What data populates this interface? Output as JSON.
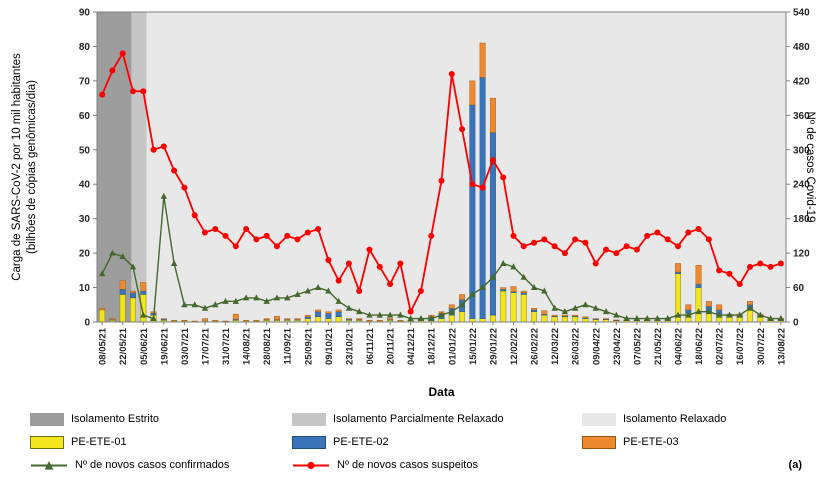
{
  "figure_label": "(a)",
  "chart_data": {
    "type": "combo",
    "xlabel": "Data",
    "ylabel_left_lines": [
      "Carga de SARS-CoV-2 por 10 mil habitantes",
      "(bilhões de cópias genômicas/dia)"
    ],
    "ylabel_right": "Nº de casos Covid-19",
    "ylim_left": [
      0,
      90
    ],
    "ylim_right": [
      0,
      540
    ],
    "yticks_left": [
      0,
      10,
      20,
      30,
      40,
      50,
      60,
      70,
      80,
      90
    ],
    "yticks_right": [
      0,
      60,
      120,
      180,
      240,
      300,
      360,
      420,
      480,
      540
    ],
    "x_tick_every": 2,
    "grid": false,
    "legend_position": "bottom",
    "x": [
      "08/05/21",
      "15/05/21",
      "22/05/21",
      "29/05/21",
      "05/06/21",
      "12/06/21",
      "19/06/21",
      "26/06/21",
      "03/07/21",
      "10/07/21",
      "17/07/21",
      "24/07/21",
      "31/07/21",
      "07/08/21",
      "14/08/21",
      "21/08/21",
      "28/08/21",
      "04/09/21",
      "11/09/21",
      "18/09/21",
      "25/09/21",
      "02/10/21",
      "09/10/21",
      "16/10/21",
      "23/10/21",
      "30/10/21",
      "06/11/21",
      "13/11/21",
      "20/11/21",
      "27/11/21",
      "04/12/21",
      "11/12/21",
      "18/12/21",
      "25/12/21",
      "01/01/22",
      "08/01/22",
      "15/01/22",
      "22/01/22",
      "29/01/22",
      "05/02/22",
      "12/02/22",
      "19/02/22",
      "26/02/22",
      "05/03/22",
      "12/03/22",
      "19/03/22",
      "26/03/22",
      "02/04/22",
      "09/04/22",
      "16/04/22",
      "23/04/22",
      "30/04/22",
      "07/05/22",
      "14/05/22",
      "21/05/22",
      "28/05/22",
      "04/06/22",
      "11/06/22",
      "18/06/22",
      "25/06/22",
      "02/07/22",
      "09/07/22",
      "16/07/22",
      "23/07/22",
      "30/07/22",
      "06/08/22",
      "13/08/22"
    ],
    "isolation_bands": [
      {
        "label": "Isolamento Estrito",
        "color": "#9d9d9d",
        "from": 0.0,
        "to": 0.05
      },
      {
        "label": "Isolamento Parcialmente Relaxado",
        "color": "#c6c6c6",
        "from": 0.05,
        "to": 0.072
      },
      {
        "label": "Isolamento Relaxado",
        "color": "#e8e8e8",
        "from": 0.072,
        "to": 1.0
      }
    ],
    "bar_series": [
      {
        "name": "PE-ETE-01",
        "color": "#f2e51e",
        "border": "#6f6f12",
        "axis": "left",
        "values": [
          3.5,
          0.5,
          8,
          7,
          8,
          2,
          0.5,
          0.3,
          0.3,
          0.2,
          0.3,
          0.3,
          0.2,
          0.5,
          0.3,
          0.3,
          0.5,
          0.5,
          0.5,
          0.5,
          1,
          1.5,
          1,
          1.5,
          0.5,
          0.5,
          0.3,
          0.3,
          0.5,
          0.3,
          0.3,
          0.5,
          0.5,
          1,
          2,
          3,
          1,
          1,
          2,
          9,
          8.5,
          8,
          3,
          2,
          1.5,
          1.5,
          1.5,
          1,
          0.7,
          0.7,
          0.4,
          0.4,
          0.4,
          0.4,
          0.4,
          0.7,
          14,
          2.5,
          10,
          3,
          2,
          1.5,
          1.5,
          4,
          1.5,
          0.7,
          0.7
        ]
      },
      {
        "name": "PE-ETE-02",
        "color": "#3a74b8",
        "border": "#1f4e79",
        "axis": "left",
        "values": [
          0,
          0.2,
          1.5,
          1.5,
          1,
          0.5,
          0.3,
          0,
          0,
          0,
          0,
          0,
          0,
          0.3,
          0,
          0,
          0.2,
          0.2,
          0.2,
          0.2,
          0.5,
          1.5,
          1.5,
          1.5,
          0.3,
          0.2,
          0,
          0,
          0.2,
          0,
          0,
          0.3,
          1,
          1.5,
          2,
          3.5,
          62,
          70,
          53,
          0.5,
          0.3,
          0.5,
          0.5,
          0.3,
          0.2,
          0.2,
          0.2,
          0.2,
          0.2,
          0.1,
          0.1,
          0.1,
          0.1,
          0.1,
          0.1,
          0.2,
          0.5,
          1,
          1,
          1.5,
          1.5,
          0.3,
          0.3,
          1,
          0.3,
          0.1,
          0.1
        ]
      },
      {
        "name": "PE-ETE-03",
        "color": "#ed8a31",
        "border": "#9c5511",
        "axis": "left",
        "values": [
          0.5,
          0.3,
          2.5,
          0.5,
          2.5,
          0.5,
          0.2,
          0.2,
          0.2,
          0.1,
          0.7,
          0.2,
          0.1,
          1.5,
          0.2,
          0.2,
          0.3,
          1,
          0.3,
          0.3,
          0.5,
          0.5,
          0.5,
          0.5,
          0.2,
          0.3,
          0.2,
          0.2,
          0.3,
          0.2,
          0.2,
          0.2,
          0.5,
          0.5,
          1,
          1.5,
          7,
          10,
          10,
          0.5,
          1.5,
          0.5,
          0.5,
          1,
          0.3,
          0.3,
          0.3,
          0.3,
          0.1,
          0.2,
          0.1,
          0.1,
          0.1,
          0.1,
          0.1,
          0.1,
          2.5,
          1.5,
          5.5,
          1.5,
          1.5,
          0.5,
          0.5,
          1,
          0.5,
          0.3,
          0.3
        ]
      }
    ],
    "line_series": [
      {
        "name": "Nº de novos casos confirmados",
        "color": "#44682d",
        "marker": "triangle",
        "axis": "right",
        "values": [
          84,
          120,
          114,
          96,
          12,
          6,
          219,
          102,
          30,
          30,
          24,
          30,
          36,
          36,
          42,
          42,
          36,
          42,
          42,
          48,
          54,
          60,
          54,
          36,
          24,
          18,
          12,
          12,
          12,
          12,
          6,
          6,
          6,
          12,
          18,
          30,
          48,
          60,
          78,
          102,
          96,
          78,
          60,
          54,
          24,
          18,
          24,
          30,
          24,
          18,
          12,
          6,
          6,
          6,
          6,
          6,
          12,
          12,
          18,
          18,
          12,
          12,
          12,
          24,
          12,
          6,
          6
        ]
      },
      {
        "name": "Nº de novos casos suspeitos",
        "color": "#fe0000",
        "marker": "circle",
        "axis": "right",
        "values": [
          396,
          438,
          468,
          402,
          402,
          300,
          306,
          264,
          234,
          186,
          156,
          162,
          150,
          132,
          162,
          144,
          150,
          132,
          150,
          144,
          156,
          162,
          108,
          72,
          102,
          54,
          126,
          96,
          66,
          102,
          18,
          54,
          150,
          246,
          432,
          336,
          240,
          234,
          282,
          252,
          150,
          132,
          138,
          144,
          132,
          120,
          144,
          138,
          102,
          126,
          120,
          132,
          126,
          150,
          156,
          144,
          132,
          156,
          162,
          144,
          90,
          84,
          66,
          96,
          102,
          96,
          102
        ]
      }
    ]
  }
}
